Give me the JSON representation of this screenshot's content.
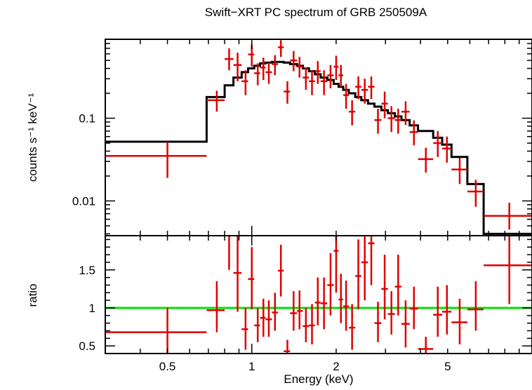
{
  "chart_data": [
    {
      "type": "scatter",
      "title": "Swift−XRT PC spectrum of GRB 250509A",
      "xlabel": "",
      "ylabel": "counts s⁻¹ keV⁻¹",
      "x_scale": "log",
      "y_scale": "log",
      "xlim": [
        0.3,
        10
      ],
      "ylim": [
        0.0038,
        0.9
      ],
      "y_tick_labels": [
        "0.1",
        "0.01"
      ],
      "y_ticks": [
        0.1,
        0.01
      ],
      "colors": {
        "data": "#e00000",
        "model": "#000000"
      },
      "series": [
        {
          "role": "data",
          "points": [
            {
              "xlo": 0.3,
              "xhi": 0.69,
              "x": 0.5,
              "y": 0.035,
              "ylo": 0.019,
              "yhi": 0.052
            },
            {
              "xlo": 0.69,
              "xhi": 0.8,
              "x": 0.75,
              "y": 0.165,
              "ylo": 0.12,
              "yhi": 0.215
            },
            {
              "xlo": 0.8,
              "xhi": 0.86,
              "x": 0.83,
              "y": 0.52,
              "ylo": 0.38,
              "yhi": 0.7
            },
            {
              "xlo": 0.86,
              "xhi": 0.92,
              "x": 0.89,
              "y": 0.44,
              "ylo": 0.28,
              "yhi": 0.62
            },
            {
              "xlo": 0.92,
              "xhi": 0.97,
              "x": 0.95,
              "y": 0.28,
              "ylo": 0.19,
              "yhi": 0.38
            },
            {
              "xlo": 0.97,
              "xhi": 1.02,
              "x": 1.0,
              "y": 0.59,
              "ylo": 0.42,
              "yhi": 0.78
            },
            {
              "xlo": 1.02,
              "xhi": 1.07,
              "x": 1.05,
              "y": 0.35,
              "ylo": 0.25,
              "yhi": 0.46
            },
            {
              "xlo": 1.07,
              "xhi": 1.12,
              "x": 1.1,
              "y": 0.41,
              "ylo": 0.29,
              "yhi": 0.54
            },
            {
              "xlo": 1.12,
              "xhi": 1.18,
              "x": 1.15,
              "y": 0.36,
              "ylo": 0.26,
              "yhi": 0.47
            },
            {
              "xlo": 1.18,
              "xhi": 1.24,
              "x": 1.21,
              "y": 0.45,
              "ylo": 0.33,
              "yhi": 0.58
            },
            {
              "xlo": 1.24,
              "xhi": 1.3,
              "x": 1.27,
              "y": 0.72,
              "ylo": 0.55,
              "yhi": 0.88
            },
            {
              "xlo": 1.3,
              "xhi": 1.37,
              "x": 1.34,
              "y": 0.21,
              "ylo": 0.15,
              "yhi": 0.28
            },
            {
              "xlo": 1.37,
              "xhi": 1.45,
              "x": 1.41,
              "y": 0.5,
              "ylo": 0.37,
              "yhi": 0.65
            },
            {
              "xlo": 1.45,
              "xhi": 1.52,
              "x": 1.48,
              "y": 0.42,
              "ylo": 0.31,
              "yhi": 0.55
            },
            {
              "xlo": 1.52,
              "xhi": 1.6,
              "x": 1.56,
              "y": 0.31,
              "ylo": 0.22,
              "yhi": 0.41
            },
            {
              "xlo": 1.6,
              "xhi": 1.68,
              "x": 1.64,
              "y": 0.28,
              "ylo": 0.19,
              "yhi": 0.38
            },
            {
              "xlo": 1.68,
              "xhi": 1.76,
              "x": 1.72,
              "y": 0.37,
              "ylo": 0.26,
              "yhi": 0.49
            },
            {
              "xlo": 1.76,
              "xhi": 1.86,
              "x": 1.81,
              "y": 0.28,
              "ylo": 0.19,
              "yhi": 0.38
            },
            {
              "xlo": 1.86,
              "xhi": 1.96,
              "x": 1.91,
              "y": 0.33,
              "ylo": 0.23,
              "yhi": 0.44
            },
            {
              "xlo": 1.96,
              "xhi": 2.04,
              "x": 2.0,
              "y": 0.42,
              "ylo": 0.29,
              "yhi": 0.57
            },
            {
              "xlo": 2.04,
              "xhi": 2.12,
              "x": 2.08,
              "y": 0.33,
              "ylo": 0.24,
              "yhi": 0.44
            },
            {
              "xlo": 2.12,
              "xhi": 2.22,
              "x": 2.17,
              "y": 0.19,
              "ylo": 0.13,
              "yhi": 0.26
            },
            {
              "xlo": 2.22,
              "xhi": 2.34,
              "x": 2.28,
              "y": 0.12,
              "ylo": 0.082,
              "yhi": 0.165
            },
            {
              "xlo": 2.34,
              "xhi": 2.46,
              "x": 2.4,
              "y": 0.24,
              "ylo": 0.17,
              "yhi": 0.32
            },
            {
              "xlo": 2.46,
              "xhi": 2.6,
              "x": 2.53,
              "y": 0.22,
              "ylo": 0.15,
              "yhi": 0.3
            },
            {
              "xlo": 2.6,
              "xhi": 2.74,
              "x": 2.67,
              "y": 0.24,
              "ylo": 0.17,
              "yhi": 0.32
            },
            {
              "xlo": 2.74,
              "xhi": 2.9,
              "x": 2.82,
              "y": 0.095,
              "ylo": 0.065,
              "yhi": 0.13
            },
            {
              "xlo": 2.9,
              "xhi": 3.06,
              "x": 2.98,
              "y": 0.15,
              "ylo": 0.1,
              "yhi": 0.21
            },
            {
              "xlo": 3.06,
              "xhi": 3.24,
              "x": 3.15,
              "y": 0.1,
              "ylo": 0.068,
              "yhi": 0.14
            },
            {
              "xlo": 3.24,
              "xhi": 3.42,
              "x": 3.33,
              "y": 0.095,
              "ylo": 0.065,
              "yhi": 0.13
            },
            {
              "xlo": 3.42,
              "xhi": 3.66,
              "x": 3.54,
              "y": 0.12,
              "ylo": 0.083,
              "yhi": 0.16
            },
            {
              "xlo": 3.66,
              "xhi": 3.92,
              "x": 3.79,
              "y": 0.068,
              "ylo": 0.047,
              "yhi": 0.094
            },
            {
              "xlo": 3.92,
              "xhi": 4.44,
              "x": 4.18,
              "y": 0.032,
              "ylo": 0.022,
              "yhi": 0.044
            },
            {
              "xlo": 4.44,
              "xhi": 4.78,
              "x": 4.61,
              "y": 0.05,
              "ylo": 0.034,
              "yhi": 0.07
            },
            {
              "xlo": 4.78,
              "xhi": 5.16,
              "x": 4.97,
              "y": 0.043,
              "ylo": 0.029,
              "yhi": 0.06
            },
            {
              "xlo": 5.16,
              "xhi": 5.88,
              "x": 5.52,
              "y": 0.024,
              "ylo": 0.016,
              "yhi": 0.033
            },
            {
              "xlo": 5.88,
              "xhi": 6.72,
              "x": 6.3,
              "y": 0.013,
              "ylo": 0.0085,
              "yhi": 0.018
            },
            {
              "xlo": 6.72,
              "xhi": 10.0,
              "x": 8.3,
              "y": 0.0066,
              "ylo": 0.0045,
              "yhi": 0.0095
            }
          ]
        },
        {
          "role": "model",
          "type": "step",
          "edges": [
            0.3,
            0.69,
            0.8,
            0.86,
            0.92,
            0.97,
            1.02,
            1.07,
            1.12,
            1.18,
            1.24,
            1.3,
            1.37,
            1.45,
            1.52,
            1.6,
            1.68,
            1.76,
            1.86,
            1.96,
            2.04,
            2.12,
            2.22,
            2.34,
            2.46,
            2.6,
            2.74,
            2.9,
            3.06,
            3.24,
            3.42,
            3.66,
            3.92,
            4.44,
            4.78,
            5.16,
            5.88,
            6.72,
            10.0
          ],
          "values": [
            0.052,
            0.18,
            0.25,
            0.31,
            0.36,
            0.4,
            0.43,
            0.46,
            0.47,
            0.48,
            0.48,
            0.47,
            0.45,
            0.43,
            0.4,
            0.37,
            0.34,
            0.31,
            0.29,
            0.26,
            0.24,
            0.22,
            0.2,
            0.18,
            0.165,
            0.15,
            0.138,
            0.125,
            0.115,
            0.105,
            0.095,
            0.082,
            0.07,
            0.058,
            0.048,
            0.034,
            0.016,
            0.004
          ]
        }
      ]
    },
    {
      "type": "scatter",
      "xlabel": "Energy (keV)",
      "ylabel": "ratio",
      "x_scale": "log",
      "xlim": [
        0.3,
        10
      ],
      "ylim": [
        0.4,
        1.95
      ],
      "y_tick_labels": [
        "0.5",
        "1",
        "1.5"
      ],
      "y_ticks": [
        0.5,
        1.0,
        1.5
      ],
      "x_tick_labels": [
        "0.5",
        "1",
        "2",
        "5"
      ],
      "x_ticks": [
        0.5,
        1,
        2,
        5
      ],
      "reference_line": {
        "y": 1.0,
        "color": "#00e000"
      },
      "colors": {
        "data": "#e00000"
      },
      "series": [
        {
          "role": "data",
          "points": [
            {
              "xlo": 0.3,
              "xhi": 0.69,
              "x": 0.5,
              "y": 0.68,
              "ylo": 0.37,
              "yhi": 1.0
            },
            {
              "xlo": 0.69,
              "xhi": 0.8,
              "x": 0.75,
              "y": 0.97,
              "ylo": 0.68,
              "yhi": 1.35
            },
            {
              "xlo": 0.8,
              "xhi": 0.86,
              "x": 0.83,
              "y": 2.05,
              "ylo": 1.5,
              "yhi": 2.6
            },
            {
              "xlo": 0.86,
              "xhi": 0.92,
              "x": 0.89,
              "y": 1.46,
              "ylo": 0.95,
              "yhi": 1.95
            },
            {
              "xlo": 0.92,
              "xhi": 0.97,
              "x": 0.95,
              "y": 0.72,
              "ylo": 0.45,
              "yhi": 1.0
            },
            {
              "xlo": 0.97,
              "xhi": 1.02,
              "x": 1.0,
              "y": 1.38,
              "ylo": 0.98,
              "yhi": 1.8
            },
            {
              "xlo": 1.02,
              "xhi": 1.07,
              "x": 1.05,
              "y": 0.77,
              "ylo": 0.55,
              "yhi": 1.0
            },
            {
              "xlo": 1.07,
              "xhi": 1.12,
              "x": 1.1,
              "y": 0.87,
              "ylo": 0.62,
              "yhi": 1.12
            },
            {
              "xlo": 1.12,
              "xhi": 1.18,
              "x": 1.15,
              "y": 0.85,
              "ylo": 0.62,
              "yhi": 1.1
            },
            {
              "xlo": 1.18,
              "xhi": 1.24,
              "x": 1.21,
              "y": 0.94,
              "ylo": 0.7,
              "yhi": 1.2
            },
            {
              "xlo": 1.24,
              "xhi": 1.3,
              "x": 1.27,
              "y": 1.49,
              "ylo": 1.15,
              "yhi": 1.83
            },
            {
              "xlo": 1.3,
              "xhi": 1.37,
              "x": 1.34,
              "y": 0.43,
              "ylo": 0.31,
              "yhi": 0.58
            },
            {
              "xlo": 1.37,
              "xhi": 1.45,
              "x": 1.41,
              "y": 0.93,
              "ylo": 0.7,
              "yhi": 1.22
            },
            {
              "xlo": 1.45,
              "xhi": 1.52,
              "x": 1.48,
              "y": 0.96,
              "ylo": 0.72,
              "yhi": 1.23
            },
            {
              "xlo": 1.52,
              "xhi": 1.6,
              "x": 1.56,
              "y": 0.76,
              "ylo": 0.55,
              "yhi": 1.0
            },
            {
              "xlo": 1.6,
              "xhi": 1.68,
              "x": 1.64,
              "y": 0.77,
              "ylo": 0.52,
              "yhi": 1.05
            },
            {
              "xlo": 1.68,
              "xhi": 1.76,
              "x": 1.72,
              "y": 1.07,
              "ylo": 0.77,
              "yhi": 1.4
            },
            {
              "xlo": 1.76,
              "xhi": 1.86,
              "x": 1.81,
              "y": 1.06,
              "ylo": 0.72,
              "yhi": 1.4
            },
            {
              "xlo": 1.86,
              "xhi": 1.96,
              "x": 1.91,
              "y": 1.3,
              "ylo": 0.9,
              "yhi": 1.72
            },
            {
              "xlo": 1.96,
              "xhi": 2.04,
              "x": 2.0,
              "y": 1.75,
              "ylo": 1.2,
              "yhi": 2.35
            },
            {
              "xlo": 2.04,
              "xhi": 2.12,
              "x": 2.08,
              "y": 1.11,
              "ylo": 0.8,
              "yhi": 1.45
            },
            {
              "xlo": 2.12,
              "xhi": 2.22,
              "x": 2.17,
              "y": 1.02,
              "ylo": 0.7,
              "yhi": 1.36
            },
            {
              "xlo": 2.22,
              "xhi": 2.34,
              "x": 2.28,
              "y": 0.74,
              "ylo": 0.45,
              "yhi": 1.05
            },
            {
              "xlo": 2.34,
              "xhi": 2.46,
              "x": 2.4,
              "y": 1.42,
              "ylo": 0.98,
              "yhi": 1.9
            },
            {
              "xlo": 2.46,
              "xhi": 2.6,
              "x": 2.53,
              "y": 1.6,
              "ylo": 1.1,
              "yhi": 2.1
            },
            {
              "xlo": 2.6,
              "xhi": 2.74,
              "x": 2.67,
              "y": 1.85,
              "ylo": 1.3,
              "yhi": 2.4
            },
            {
              "xlo": 2.74,
              "xhi": 2.9,
              "x": 2.82,
              "y": 0.8,
              "ylo": 0.55,
              "yhi": 1.08
            },
            {
              "xlo": 2.9,
              "xhi": 3.06,
              "x": 2.98,
              "y": 1.25,
              "ylo": 0.85,
              "yhi": 1.7
            },
            {
              "xlo": 3.06,
              "xhi": 3.24,
              "x": 3.15,
              "y": 0.92,
              "ylo": 0.65,
              "yhi": 1.22
            },
            {
              "xlo": 3.24,
              "xhi": 3.42,
              "x": 3.33,
              "y": 1.28,
              "ylo": 0.9,
              "yhi": 1.7
            },
            {
              "xlo": 3.42,
              "xhi": 3.66,
              "x": 3.54,
              "y": 0.79,
              "ylo": 0.48,
              "yhi": 1.1
            },
            {
              "xlo": 3.66,
              "xhi": 3.92,
              "x": 3.79,
              "y": 0.99,
              "ylo": 0.72,
              "yhi": 1.28
            },
            {
              "xlo": 3.92,
              "xhi": 4.44,
              "x": 4.18,
              "y": 0.46,
              "ylo": 0.32,
              "yhi": 0.62
            },
            {
              "xlo": 4.44,
              "xhi": 4.78,
              "x": 4.61,
              "y": 0.91,
              "ylo": 0.62,
              "yhi": 1.28
            },
            {
              "xlo": 4.78,
              "xhi": 5.16,
              "x": 4.97,
              "y": 0.95,
              "ylo": 0.65,
              "yhi": 1.3
            },
            {
              "xlo": 5.16,
              "xhi": 5.88,
              "x": 5.52,
              "y": 0.81,
              "ylo": 0.52,
              "yhi": 1.12
            },
            {
              "xlo": 5.88,
              "xhi": 6.72,
              "x": 6.3,
              "y": 0.98,
              "ylo": 0.7,
              "yhi": 1.35
            },
            {
              "xlo": 6.72,
              "xhi": 10.0,
              "x": 8.3,
              "y": 1.56,
              "ylo": 1.05,
              "yhi": 2.1
            }
          ]
        }
      ]
    }
  ]
}
